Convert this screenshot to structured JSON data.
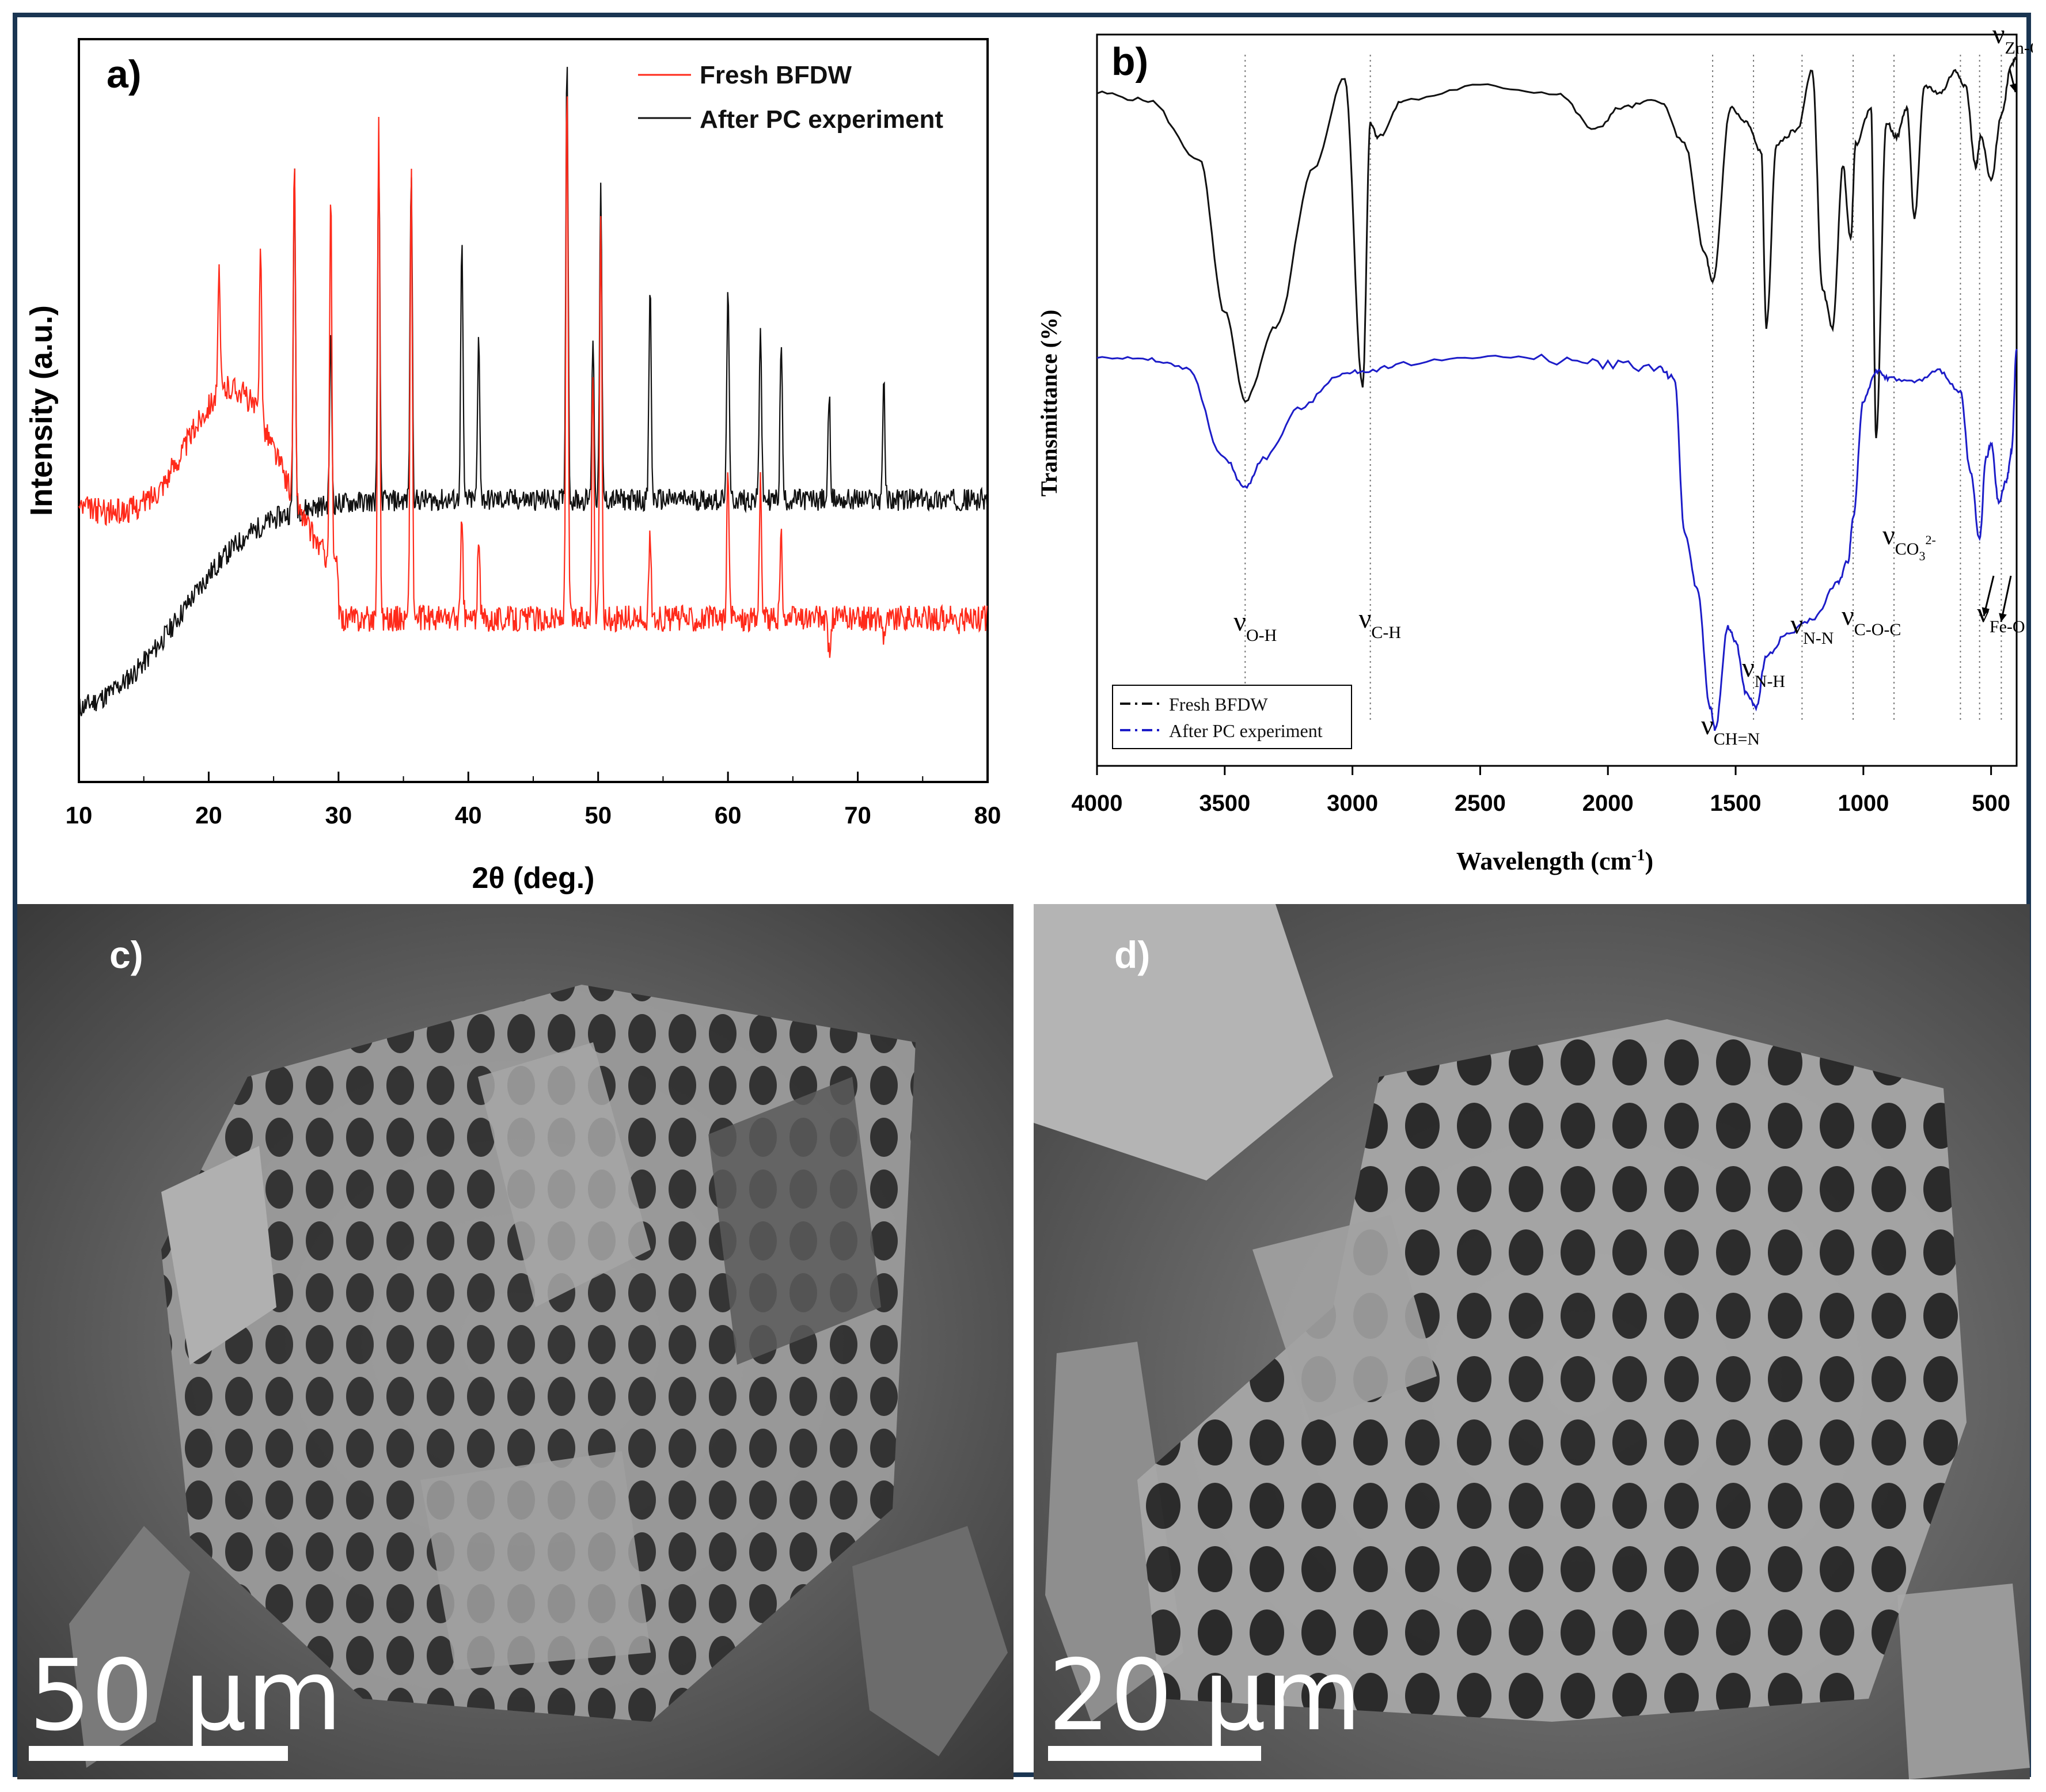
{
  "panels": {
    "a": {
      "label": "a)",
      "chart_data": {
        "type": "line",
        "xlabel": "2θ (deg.)",
        "ylabel": "Intensity (a.u.)",
        "xlim": [
          10,
          80
        ],
        "xticks": [
          10,
          20,
          30,
          40,
          50,
          60,
          70,
          80
        ],
        "legend_position": "top-right",
        "series": [
          {
            "name": "Fresh BFDW",
            "color": "#ff2a1a",
            "peaks": [
              {
                "x": 20.8,
                "y": 0.68
              },
              {
                "x": 24.0,
                "y": 0.73
              },
              {
                "x": 26.6,
                "y": 0.83
              },
              {
                "x": 29.4,
                "y": 0.8
              },
              {
                "x": 33.1,
                "y": 0.9
              },
              {
                "x": 35.6,
                "y": 0.83
              },
              {
                "x": 39.5,
                "y": 0.35
              },
              {
                "x": 40.8,
                "y": 0.32
              },
              {
                "x": 47.6,
                "y": 0.95
              },
              {
                "x": 49.6,
                "y": 0.55
              },
              {
                "x": 50.2,
                "y": 0.77
              },
              {
                "x": 54.0,
                "y": 0.33
              },
              {
                "x": 60.0,
                "y": 0.42
              },
              {
                "x": 62.5,
                "y": 0.4
              },
              {
                "x": 64.1,
                "y": 0.33
              },
              {
                "x": 67.8,
                "y": 0.17
              },
              {
                "x": 72.0,
                "y": 0.2
              },
              {
                "x": 77.7,
                "y": 0.2
              }
            ]
          },
          {
            "name": "After PC experiment",
            "color": "#111111",
            "peaks": [
              {
                "x": 26.6,
                "y": 0.83
              },
              {
                "x": 29.4,
                "y": 0.6
              },
              {
                "x": 33.1,
                "y": 0.85
              },
              {
                "x": 35.6,
                "y": 0.83
              },
              {
                "x": 39.5,
                "y": 0.73
              },
              {
                "x": 40.8,
                "y": 0.6
              },
              {
                "x": 47.6,
                "y": 0.99
              },
              {
                "x": 49.6,
                "y": 0.6
              },
              {
                "x": 50.2,
                "y": 0.8
              },
              {
                "x": 54.0,
                "y": 0.67
              },
              {
                "x": 60.0,
                "y": 0.68
              },
              {
                "x": 62.5,
                "y": 0.62
              },
              {
                "x": 64.1,
                "y": 0.6
              },
              {
                "x": 67.8,
                "y": 0.52
              },
              {
                "x": 72.0,
                "y": 0.54
              }
            ]
          }
        ]
      }
    },
    "b": {
      "label": "b)",
      "chart_data": {
        "type": "line",
        "xlabel": "Wavelength (cm⁻¹)",
        "ylabel": "Transmittance (%)",
        "xlim": [
          4000,
          400
        ],
        "xticks": [
          4000,
          3500,
          3000,
          2500,
          2000,
          1500,
          1000,
          500
        ],
        "legend_position": "bottom-left",
        "series": [
          {
            "name": "Fresh BFDW",
            "color": "#111111",
            "x": [
              4000,
              3800,
              3600,
              3500,
              3420,
              3300,
              3150,
              3030,
              2960,
              2930,
              2900,
              2800,
              2500,
              2200,
              2050,
              1950,
              1800,
              1700,
              1620,
              1590,
              1520,
              1460,
              1400,
              1380,
              1340,
              1260,
              1200,
              1160,
              1120,
              1080,
              1050,
              1030,
              970,
              950,
              910,
              870,
              830,
              800,
              760,
              700,
              640,
              600,
              560,
              540,
              500,
              460,
              420,
              400
            ],
            "y": [
              92,
              91,
              83,
              62,
              50,
              60,
              82,
              94,
              52,
              88,
              86,
              91,
              93,
              92,
              87,
              90,
              91,
              85,
              70,
              66,
              90,
              88,
              84,
              60,
              85,
              87,
              95,
              65,
              60,
              82,
              72,
              85,
              90,
              45,
              88,
              86,
              90,
              75,
              93,
              92,
              95,
              93,
              82,
              86,
              80,
              89,
              96,
              97
            ]
          },
          {
            "name": "After PC experiment",
            "color": "#1c1cc8",
            "x": [
              4000,
              3800,
              3650,
              3500,
              3420,
              3350,
              3200,
              3050,
              2950,
              2800,
              2500,
              2200,
              2000,
              1800,
              1740,
              1700,
              1650,
              1600,
              1580,
              1530,
              1500,
              1460,
              1420,
              1380,
              1300,
              1200,
              1100,
              1060,
              1040,
              1000,
              950,
              900,
              800,
              700,
              620,
              580,
              545,
              520,
              500,
              470,
              440,
              420,
              400
            ],
            "y": [
              56,
              55.5,
              54.5,
              42,
              38,
              42,
              49,
              53.5,
              54,
              55,
              56,
              55.5,
              55,
              54.5,
              53,
              32,
              24,
              8,
              5,
              19,
              17,
              10,
              8,
              15,
              18,
              20,
              25,
              28,
              34,
              50,
              54,
              53,
              52.5,
              54,
              51,
              40,
              31,
              42,
              44,
              36,
              39,
              43,
              57
            ]
          }
        ],
        "annotations": [
          {
            "label": "ν",
            "sub": "O-H",
            "x": 3420
          },
          {
            "label": "ν",
            "sub": "C-H",
            "x": 2930
          },
          {
            "label": "ν",
            "sub": "CH=N",
            "x": 1590
          },
          {
            "label": "ν",
            "sub": "N-H",
            "x": 1430
          },
          {
            "label": "ν",
            "sub": "N-N",
            "x": 1240
          },
          {
            "label": "ν",
            "sub": "C-O-C",
            "x": 1040
          },
          {
            "label": "ν",
            "sub": "CO",
            "sub2": "3",
            "sup": "2-",
            "x": 880
          },
          {
            "label": "ν",
            "sub": "Fe-O",
            "x": 500
          },
          {
            "label": "ν",
            "sub": "Zn-O",
            "x": 460
          }
        ]
      }
    },
    "c": {
      "label": "c)",
      "scale_bar": "50 µm"
    },
    "d": {
      "label": "d)",
      "scale_bar": "20 µm"
    }
  }
}
